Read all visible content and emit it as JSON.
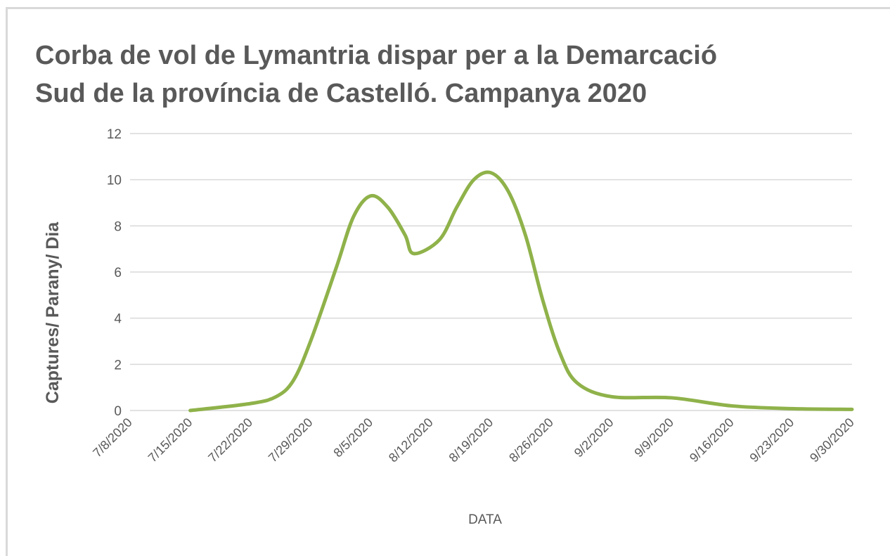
{
  "chart_data": {
    "type": "line",
    "title": "Corba de vol de Lymantria dispar per a la Demarcació\nSud de la província de Castelló. Campanya 2020",
    "xlabel": "DATA",
    "ylabel": "Captures/ Parany/ Dia",
    "x": [
      "7/15/2020",
      "7/22/2020",
      "7/25/2020",
      "7/27/2020",
      "7/29/2020",
      "8/1/2020",
      "8/3/2020",
      "8/5/2020",
      "8/7/2020",
      "8/9/2020",
      "8/10/2020",
      "8/13/2020",
      "8/15/2020",
      "8/17/2020",
      "8/19/2020",
      "8/21/2020",
      "8/23/2020",
      "8/25/2020",
      "8/27/2020",
      "8/29/2020",
      "9/2/2020",
      "9/9/2020",
      "9/16/2020",
      "9/23/2020",
      "9/30/2020"
    ],
    "series": [
      {
        "name": "Captures/ Parany/ Dia",
        "color": "#8fb24a",
        "values": [
          0,
          0.3,
          0.6,
          1.3,
          3.0,
          6.2,
          8.4,
          9.3,
          8.8,
          7.6,
          6.8,
          7.4,
          8.8,
          10.0,
          10.3,
          9.5,
          7.6,
          4.8,
          2.5,
          1.2,
          0.6,
          0.55,
          0.2,
          0.08,
          0.05
        ]
      }
    ],
    "xlim": [
      "7/8/2020",
      "9/30/2020"
    ],
    "xticks": [
      "7/8/2020",
      "7/15/2020",
      "7/22/2020",
      "7/29/2020",
      "8/5/2020",
      "8/12/2020",
      "8/19/2020",
      "8/26/2020",
      "9/2/2020",
      "9/9/2020",
      "9/16/2020",
      "9/23/2020",
      "9/30/2020"
    ],
    "ylim": [
      0,
      12
    ],
    "yticks": [
      0,
      2,
      4,
      6,
      8,
      10,
      12
    ],
    "grid": true
  }
}
